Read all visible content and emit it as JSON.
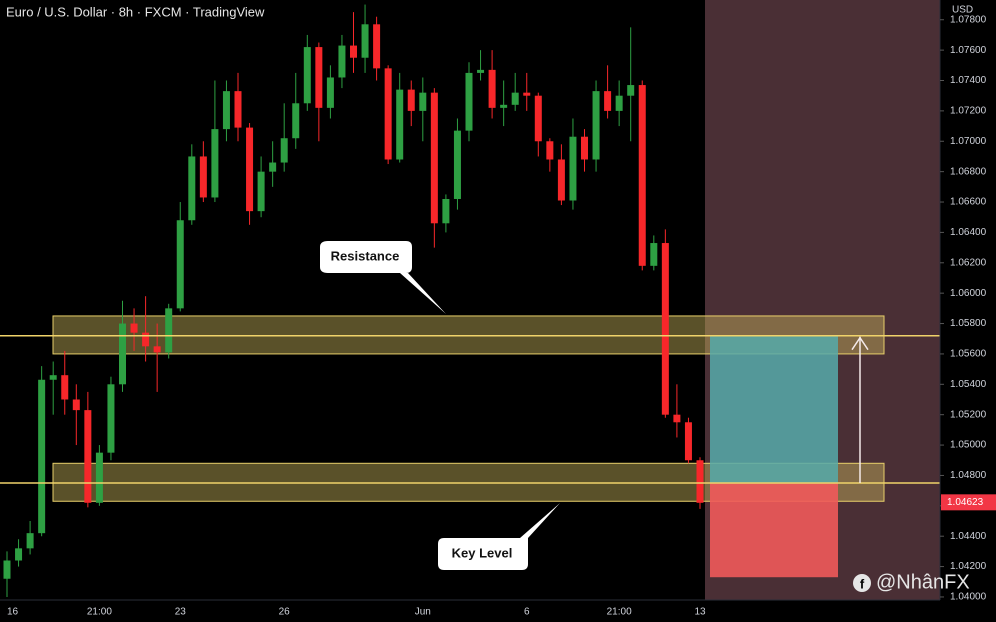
{
  "chart_data": {
    "type": "candlestick",
    "title": "Euro / U.S. Dollar · 8h · FXCM · TradingView",
    "y_axis_label": "USD",
    "categories": [
      "16",
      null,
      null,
      null,
      null,
      null,
      null,
      null,
      "21:00",
      null,
      null,
      null,
      null,
      null,
      null,
      "23",
      null,
      null,
      null,
      null,
      null,
      null,
      null,
      null,
      "26",
      null,
      null,
      null,
      null,
      null,
      null,
      null,
      null,
      null,
      null,
      null,
      "Jun",
      null,
      null,
      null,
      null,
      null,
      null,
      null,
      null,
      "6",
      null,
      null,
      null,
      null,
      null,
      null,
      null,
      "21:00",
      null,
      null,
      null,
      null,
      null,
      null,
      "13"
    ],
    "open": [
      1.0412,
      1.0424,
      1.0432,
      1.0442,
      1.0543,
      1.0546,
      1.053,
      1.0523,
      1.0462,
      1.0495,
      1.054,
      1.058,
      1.0574,
      1.0565,
      1.0561,
      1.059,
      1.0648,
      1.069,
      1.0663,
      1.0708,
      1.0733,
      1.0709,
      1.0654,
      1.068,
      1.0686,
      1.0702,
      1.0725,
      1.0762,
      1.0722,
      1.0742,
      1.0763,
      1.0755,
      1.0777,
      1.0748,
      1.0688,
      1.0734,
      1.072,
      1.0732,
      1.0646,
      1.0662,
      1.0707,
      1.0745,
      1.0747,
      1.0722,
      1.0724,
      1.0732,
      1.073,
      1.07,
      1.0688,
      1.0661,
      1.0703,
      1.0688,
      1.0733,
      1.072,
      1.073,
      1.0737,
      1.0618,
      1.0633,
      1.052,
      1.0515,
      1.049
    ],
    "high": [
      1.043,
      1.0438,
      1.045,
      1.0552,
      1.0555,
      1.0562,
      1.054,
      1.0535,
      1.05,
      1.0545,
      1.0595,
      1.059,
      1.0598,
      1.058,
      1.0593,
      1.066,
      1.0698,
      1.07,
      1.074,
      1.074,
      1.0745,
      1.0712,
      1.069,
      1.07,
      1.0725,
      1.0745,
      1.077,
      1.0765,
      1.075,
      1.077,
      1.0785,
      1.079,
      1.0782,
      1.075,
      1.0745,
      1.074,
      1.0742,
      1.0735,
      1.0665,
      1.0715,
      1.0752,
      1.076,
      1.076,
      1.074,
      1.0745,
      1.0745,
      1.0732,
      1.0702,
      1.0698,
      1.0715,
      1.0708,
      1.074,
      1.075,
      1.074,
      1.0775,
      1.074,
      1.0638,
      1.0642,
      1.054,
      1.0518,
      1.0492
    ],
    "low": [
      1.04,
      1.042,
      1.0428,
      1.044,
      1.052,
      1.052,
      1.05,
      1.0459,
      1.046,
      1.049,
      1.0535,
      1.0562,
      1.0555,
      1.0535,
      1.0557,
      1.0588,
      1.0645,
      1.066,
      1.066,
      1.07,
      1.07,
      1.0645,
      1.065,
      1.067,
      1.068,
      1.0695,
      1.072,
      1.07,
      1.0715,
      1.0735,
      1.0745,
      1.0745,
      1.074,
      1.0685,
      1.0686,
      1.071,
      1.07,
      1.063,
      1.064,
      1.0655,
      1.07,
      1.074,
      1.0715,
      1.071,
      1.072,
      1.072,
      1.069,
      1.068,
      1.0658,
      1.0655,
      1.068,
      1.068,
      1.0715,
      1.071,
      1.07,
      1.0615,
      1.0615,
      1.0518,
      1.0505,
      1.0488,
      1.0458
    ],
    "close": [
      1.0424,
      1.0432,
      1.0442,
      1.0543,
      1.0546,
      1.053,
      1.0523,
      1.0462,
      1.0495,
      1.054,
      1.058,
      1.0574,
      1.0565,
      1.0561,
      1.059,
      1.0648,
      1.069,
      1.0663,
      1.0708,
      1.0733,
      1.0709,
      1.0654,
      1.068,
      1.0686,
      1.0702,
      1.0725,
      1.0762,
      1.0722,
      1.0742,
      1.0763,
      1.0755,
      1.0777,
      1.0748,
      1.0688,
      1.0734,
      1.072,
      1.0732,
      1.0646,
      1.0662,
      1.0707,
      1.0745,
      1.0747,
      1.0722,
      1.0724,
      1.0732,
      1.073,
      1.07,
      1.0688,
      1.0661,
      1.0703,
      1.0688,
      1.0733,
      1.072,
      1.073,
      1.0737,
      1.0618,
      1.0633,
      1.052,
      1.0515,
      1.049,
      1.0462
    ],
    "up_color": "#2ea043",
    "down_color": "#f7272a",
    "ylim": [
      1.0398,
      1.0793
    ],
    "yticks": [
      {
        "value": 1.04,
        "label": "1.04000"
      },
      {
        "value": 1.042,
        "label": "1.04200"
      },
      {
        "value": 1.044,
        "label": "1.04400"
      },
      {
        "value": 1.046,
        "label": "1.04600"
      },
      {
        "value": 1.048,
        "label": "1.04800"
      },
      {
        "value": 1.05,
        "label": "1.05000"
      },
      {
        "value": 1.052,
        "label": "1.05200"
      },
      {
        "value": 1.054,
        "label": "1.05400"
      },
      {
        "value": 1.056,
        "label": "1.05600"
      },
      {
        "value": 1.058,
        "label": "1.05800"
      },
      {
        "value": 1.06,
        "label": "1.06000"
      },
      {
        "value": 1.062,
        "label": "1.06200"
      },
      {
        "value": 1.064,
        "label": "1.06400"
      },
      {
        "value": 1.066,
        "label": "1.06600"
      },
      {
        "value": 1.068,
        "label": "1.06800"
      },
      {
        "value": 1.07,
        "label": "1.07000"
      },
      {
        "value": 1.072,
        "label": "1.07200"
      },
      {
        "value": 1.074,
        "label": "1.07400"
      },
      {
        "value": 1.076,
        "label": "1.07600"
      },
      {
        "value": 1.078,
        "label": "1.07800"
      }
    ],
    "grid": false,
    "last_price": {
      "value": 1.04623,
      "label": "1.04623"
    },
    "zones": [
      [
        1.056,
        1.0585
      ],
      [
        1.0463,
        1.0488
      ]
    ],
    "levels": [
      1.0572,
      1.0475
    ],
    "position": {
      "entry": 1.0475,
      "target": 1.0572,
      "stop": 1.0413
    },
    "annotations": [
      "Resistance",
      "Key Level"
    ],
    "watermark": "@NhânFX"
  }
}
